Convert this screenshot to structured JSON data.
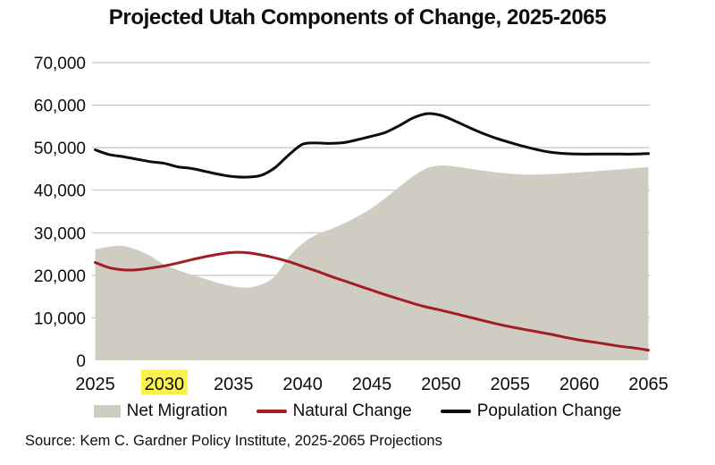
{
  "title": "Projected Utah Components of Change, 2025-2065",
  "source": "Source: Kem C. Gardner Policy Institute, 2025-2065 Projections",
  "colors": {
    "net_migration": "#cfcdc2",
    "natural_change": "#a31e22",
    "population_change": "#0d0d0d",
    "gridline": "#c6c6c6",
    "xtick_highlight": "#fbf24e",
    "text": "#0d0d0d"
  },
  "legend": {
    "items": [
      {
        "label": "Net Migration",
        "kind": "area",
        "color_key": "net_migration"
      },
      {
        "label": "Natural Change",
        "kind": "line",
        "color_key": "natural_change"
      },
      {
        "label": "Population Change",
        "kind": "line",
        "color_key": "population_change"
      }
    ]
  },
  "chart_data": {
    "type": "area+line",
    "title": "Projected Utah Components of Change, 2025-2065",
    "xlabel": "",
    "ylabel": "",
    "xlim": [
      2025,
      2065
    ],
    "ylim": [
      0,
      70000
    ],
    "grid": true,
    "legend_position": "bottom",
    "yticks": [
      0,
      10000,
      20000,
      30000,
      40000,
      50000,
      60000,
      70000
    ],
    "ytick_labels": [
      "0",
      "10,000",
      "20,000",
      "30,000",
      "40,000",
      "50,000",
      "60,000",
      "70,000"
    ],
    "xticks": [
      2025,
      2030,
      2035,
      2040,
      2045,
      2050,
      2055,
      2060,
      2065
    ],
    "xtick_labels": [
      "2025",
      "2030",
      "2035",
      "2040",
      "2045",
      "2050",
      "2055",
      "2060",
      "2065"
    ],
    "highlighted_xtick": "2030",
    "x": [
      2025,
      2026,
      2027,
      2028,
      2029,
      2030,
      2031,
      2032,
      2033,
      2034,
      2035,
      2036,
      2037,
      2038,
      2039,
      2040,
      2041,
      2042,
      2043,
      2044,
      2045,
      2046,
      2047,
      2048,
      2049,
      2050,
      2051,
      2052,
      2053,
      2054,
      2055,
      2056,
      2057,
      2058,
      2059,
      2060,
      2061,
      2062,
      2063,
      2064,
      2065
    ],
    "series": [
      {
        "name": "Net Migration",
        "kind": "area",
        "color_key": "net_migration",
        "values": [
          26100,
          26700,
          26900,
          26000,
          24500,
          22500,
          21200,
          20100,
          19100,
          18100,
          17400,
          17100,
          17800,
          19800,
          24300,
          27500,
          29600,
          30800,
          32200,
          33900,
          35800,
          38200,
          40800,
          43300,
          45200,
          45800,
          45600,
          45100,
          44600,
          44200,
          43900,
          43700,
          43700,
          43800,
          44000,
          44200,
          44400,
          44700,
          44900,
          45200,
          45400
        ]
      },
      {
        "name": "Natural Change",
        "kind": "line",
        "color_key": "natural_change",
        "values": [
          23000,
          21800,
          21300,
          21300,
          21700,
          22200,
          22900,
          23700,
          24400,
          25000,
          25400,
          25300,
          24800,
          24100,
          23200,
          22100,
          21000,
          19800,
          18700,
          17600,
          16500,
          15400,
          14400,
          13400,
          12500,
          11800,
          11000,
          10200,
          9400,
          8600,
          7900,
          7300,
          6700,
          6100,
          5400,
          4800,
          4300,
          3800,
          3300,
          2900,
          2400
        ]
      },
      {
        "name": "Population Change",
        "kind": "line",
        "color_key": "population_change",
        "values": [
          49500,
          48400,
          47900,
          47300,
          46700,
          46300,
          45500,
          45100,
          44400,
          43700,
          43200,
          43100,
          43500,
          45300,
          48300,
          50800,
          51100,
          51000,
          51200,
          51900,
          52700,
          53600,
          55200,
          57000,
          58000,
          57600,
          56300,
          54800,
          53400,
          52200,
          51200,
          50300,
          49500,
          48900,
          48600,
          48500,
          48500,
          48500,
          48500,
          48500,
          48600
        ]
      }
    ]
  }
}
